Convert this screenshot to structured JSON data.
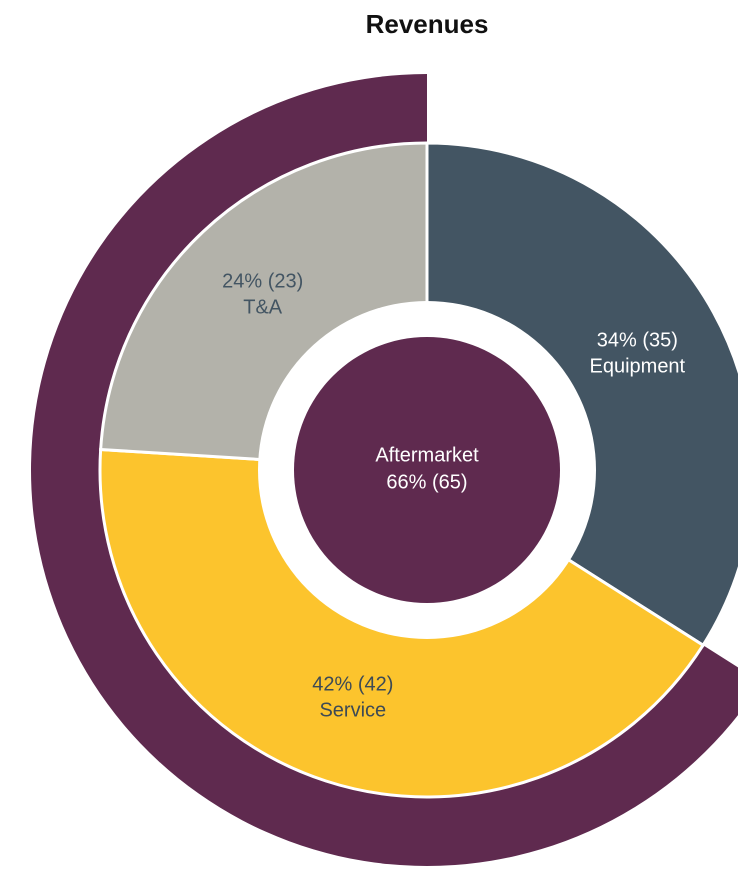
{
  "chart_data": {
    "type": "donut",
    "title": "Revenues",
    "categories": [
      "Equipment",
      "Service",
      "T&A"
    ],
    "values": [
      34,
      42,
      24
    ],
    "value_labels": [
      "34% (35)",
      "42% (42)",
      "24% (23)"
    ],
    "colors": [
      "#435563",
      "#fcc42d",
      "#b3b2aa"
    ],
    "aftermarket": {
      "label": "Aftermarket",
      "value": 66,
      "value_label": "66% (65)",
      "color": "#5f2a4f"
    }
  }
}
